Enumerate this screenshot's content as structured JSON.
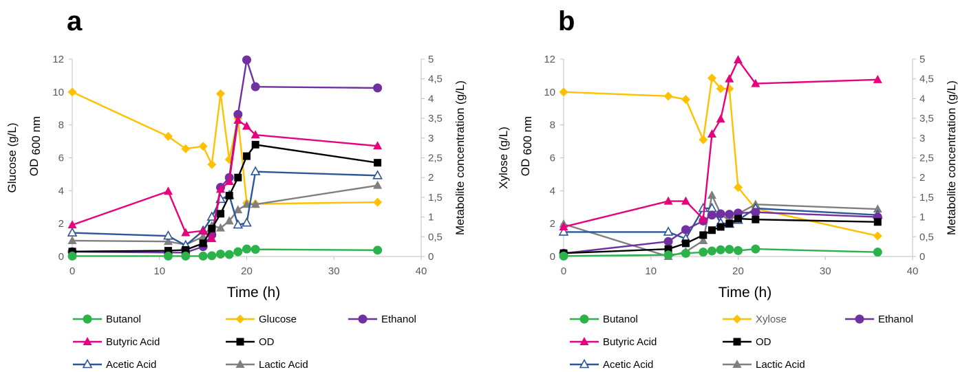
{
  "colors": {
    "Butanol": "#2bb34a",
    "Glucose": "#ffc000",
    "Xylose": "#ffc000",
    "Ethanol": "#7030a0",
    "Butyric Acid": "#e6007e",
    "OD": "#000000",
    "Acetic Acid": "#2e5597",
    "Lactic Acid": "#7f7f7f"
  },
  "markers": {
    "Butanol": "circle",
    "Glucose": "diamond",
    "Xylose": "diamond",
    "Ethanol": "circle",
    "Butyric Acid": "triangle",
    "OD": "square",
    "Acetic Acid": "triangle-open",
    "Lactic Acid": "triangle"
  },
  "chart_data": [
    {
      "type": "line",
      "panel_label": "a",
      "xlabel": "Time (h)",
      "ylabel_left": [
        "Glucose (g/L)",
        "OD",
        "600 nm"
      ],
      "ylabel_right": "Metabolite concentration (g/L)",
      "xlim": [
        0,
        40
      ],
      "ylim_left": [
        0,
        12
      ],
      "ylim_right": [
        0,
        5
      ],
      "x_ticks": [
        "0",
        "10",
        "20",
        "30",
        "40"
      ],
      "y_left_ticks": [
        "0",
        "2",
        "4",
        "6",
        "8",
        "10",
        "12"
      ],
      "y_right_ticks": [
        "0",
        "0,5",
        "1",
        "1,5",
        "2",
        "2,5",
        "3",
        "3,5",
        "4",
        "4,5",
        "5"
      ],
      "grid": false,
      "legend": [
        [
          "Butanol",
          "Glucose",
          "Ethanol"
        ],
        [
          "Butyric Acid",
          "OD"
        ],
        [
          "Acetic Acid",
          "Lactic Acid"
        ]
      ],
      "series": [
        {
          "name": "Glucose",
          "axis": "left",
          "x": [
            0,
            11,
            13,
            15,
            16,
            17,
            18,
            19,
            20,
            21,
            35
          ],
          "y": [
            10.0,
            7.3,
            6.55,
            6.7,
            5.6,
            9.9,
            5.9,
            8.4,
            3.25,
            3.2,
            3.3
          ]
        },
        {
          "name": "OD",
          "axis": "left",
          "x": [
            0,
            11,
            13,
            15,
            16,
            17,
            18,
            19,
            20,
            21,
            35
          ],
          "y": [
            0.3,
            0.35,
            0.4,
            0.8,
            1.7,
            2.6,
            3.7,
            4.8,
            6.1,
            6.8,
            5.7
          ]
        },
        {
          "name": "Butanol",
          "axis": "right",
          "x": [
            0,
            11,
            13,
            15,
            16,
            17,
            18,
            19,
            20,
            21,
            35
          ],
          "y": [
            0.01,
            0.01,
            0.01,
            0.01,
            0.02,
            0.06,
            0.05,
            0.12,
            0.19,
            0.18,
            0.16
          ]
        },
        {
          "name": "Ethanol",
          "axis": "right",
          "x": [
            0,
            11,
            13,
            15,
            16,
            17,
            18,
            19,
            20,
            21,
            35
          ],
          "y": [
            0.12,
            0.1,
            0.1,
            0.25,
            0.55,
            1.75,
            2.0,
            3.6,
            4.98,
            4.3,
            4.27
          ]
        },
        {
          "name": "Butyric Acid",
          "axis": "right",
          "x": [
            0,
            11,
            13,
            15,
            16,
            17,
            18,
            19,
            20,
            21,
            35
          ],
          "y": [
            0.8,
            1.65,
            0.6,
            0.65,
            0.45,
            1.7,
            1.9,
            3.45,
            3.3,
            3.08,
            2.8
          ]
        },
        {
          "name": "Acetic Acid",
          "axis": "right",
          "x": [
            0,
            11,
            13,
            15,
            16,
            17,
            18,
            19,
            20,
            21,
            35
          ],
          "y": [
            0.6,
            0.52,
            0.28,
            0.65,
            1.0,
            1.45,
            1.55,
            0.8,
            0.85,
            2.15,
            2.05
          ]
        },
        {
          "name": "Lactic Acid",
          "axis": "right",
          "x": [
            0,
            11,
            13,
            15,
            16,
            17,
            18,
            19,
            20,
            21,
            35
          ],
          "y": [
            0.4,
            0.38,
            0.3,
            0.5,
            0.78,
            0.72,
            0.9,
            1.18,
            1.32,
            1.32,
            1.8
          ]
        }
      ]
    },
    {
      "type": "line",
      "panel_label": "b",
      "xlabel": "Time (h)",
      "ylabel_left": [
        "Xylose (g/L)",
        "OD",
        "600 nm"
      ],
      "ylabel_right": "Metabolite concentration (g/L)",
      "xlim": [
        0,
        40
      ],
      "ylim_left": [
        0,
        12
      ],
      "ylim_right": [
        0,
        5
      ],
      "x_ticks": [
        "0",
        "10",
        "20",
        "30",
        "40"
      ],
      "y_left_ticks": [
        "0",
        "2",
        "4",
        "6",
        "8",
        "10",
        "12"
      ],
      "y_right_ticks": [
        "0",
        "0,5",
        "1",
        "1,5",
        "2",
        "2,5",
        "3",
        "3,5",
        "4",
        "4,5",
        "5"
      ],
      "grid": false,
      "legend": [
        [
          "Butanol",
          "Xylose",
          "Ethanol"
        ],
        [
          "Butyric Acid",
          "OD"
        ],
        [
          "Acetic Acid",
          "Lactic Acid"
        ]
      ],
      "series": [
        {
          "name": "Xylose",
          "axis": "left",
          "x": [
            0,
            12,
            14,
            16,
            17,
            18,
            19,
            20,
            22,
            36
          ],
          "y": [
            10.0,
            9.75,
            9.55,
            7.1,
            10.85,
            10.2,
            10.2,
            4.2,
            2.9,
            1.25
          ]
        },
        {
          "name": "OD",
          "axis": "left",
          "x": [
            0,
            12,
            14,
            16,
            17,
            18,
            19,
            20,
            22,
            36
          ],
          "y": [
            0.2,
            0.45,
            0.8,
            1.3,
            1.6,
            1.8,
            2.0,
            2.3,
            2.25,
            2.1
          ]
        },
        {
          "name": "Butanol",
          "axis": "right",
          "x": [
            0,
            12,
            14,
            16,
            17,
            18,
            19,
            20,
            22,
            36
          ],
          "y": [
            0.01,
            0.04,
            0.08,
            0.11,
            0.14,
            0.17,
            0.18,
            0.15,
            0.19,
            0.11
          ]
        },
        {
          "name": "Ethanol",
          "axis": "right",
          "x": [
            0,
            12,
            14,
            16,
            17,
            18,
            19,
            20,
            22,
            36
          ],
          "y": [
            0.08,
            0.38,
            0.68,
            0.9,
            1.05,
            1.08,
            1.07,
            1.1,
            1.12,
            1.0
          ]
        },
        {
          "name": "Butyric Acid",
          "axis": "right",
          "x": [
            0,
            12,
            14,
            16,
            17,
            18,
            19,
            20,
            22,
            36
          ],
          "y": [
            0.75,
            1.4,
            1.4,
            0.95,
            3.1,
            3.48,
            4.5,
            4.98,
            4.38,
            4.48
          ]
        },
        {
          "name": "Acetic Acid",
          "axis": "right",
          "x": [
            0,
            12,
            14,
            16,
            17,
            18,
            19,
            20,
            22,
            36
          ],
          "y": [
            0.62,
            0.62,
            0.45,
            1.22,
            1.22,
            0.85,
            0.82,
            0.92,
            1.22,
            1.05
          ]
        },
        {
          "name": "Lactic Acid",
          "axis": "right",
          "x": [
            0,
            12,
            14,
            16,
            17,
            18,
            19,
            20,
            22,
            36
          ],
          "y": [
            0.82,
            0.0,
            0.12,
            0.4,
            1.55,
            1.08,
            0.9,
            1.08,
            1.32,
            1.2
          ]
        }
      ]
    }
  ]
}
